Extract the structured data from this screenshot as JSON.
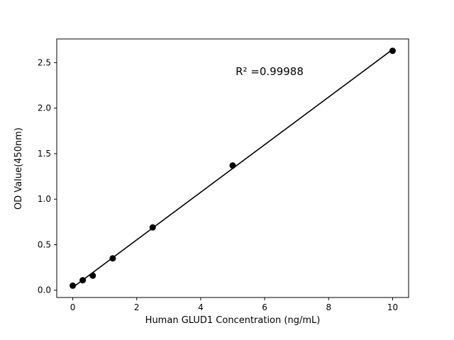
{
  "chart_data": {
    "type": "scatter",
    "title": "",
    "xlabel": "Human GLUD1 Concentration (ng/mL)",
    "ylabel": "OD Value(450nm)",
    "annotation": "R² =0.99988",
    "x": [
      0,
      0.3125,
      0.625,
      1.25,
      2.5,
      5,
      10
    ],
    "y": [
      0.05,
      0.11,
      0.16,
      0.35,
      0.69,
      1.37,
      2.63
    ],
    "fit": "linear",
    "xlim": [
      -0.5,
      10.5
    ],
    "ylim": [
      -0.08,
      2.76
    ],
    "xticks": [
      0,
      2,
      4,
      6,
      8,
      10
    ],
    "xtick_labels": [
      "0",
      "2",
      "4",
      "6",
      "8",
      "10"
    ],
    "yticks": [
      0.0,
      0.5,
      1.0,
      1.5,
      2.0,
      2.5
    ],
    "ytick_labels": [
      "0.0",
      "0.5",
      "1.0",
      "1.5",
      "2.0",
      "2.5"
    ],
    "grid": false,
    "legend_position": "none",
    "marker_color": "#000000",
    "line_color": "#000000",
    "spine_color": "#000000",
    "background_color": "#ffffff"
  }
}
